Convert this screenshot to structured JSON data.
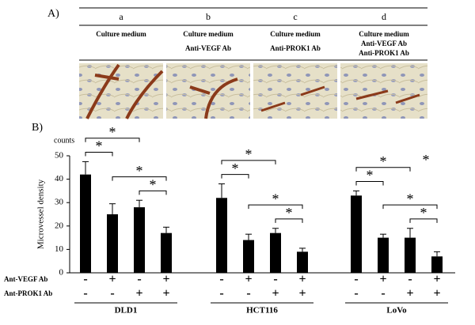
{
  "panel_a": {
    "label": "A)",
    "columns": [
      {
        "letter": "a",
        "lines": [
          "Culture medium"
        ]
      },
      {
        "letter": "b",
        "lines": [
          "Culture medium",
          "Anti-VEGF Ab"
        ]
      },
      {
        "letter": "c",
        "lines": [
          "Culture medium",
          "Anti-PROK1 Ab"
        ]
      },
      {
        "letter": "d",
        "lines": [
          "Culture medium",
          "Anti-VEGF Ab",
          "Anti-PROK1 Ab"
        ]
      }
    ]
  },
  "chart_data": {
    "type": "bar",
    "panel_label": "B)",
    "y_label": "Microvessel density",
    "y_unit": "counts",
    "color": "#000000",
    "ylim": [
      0,
      50
    ],
    "yticks": [
      0,
      10,
      20,
      30,
      40,
      50
    ],
    "categories": [
      null,
      null,
      null,
      null,
      null,
      null,
      null,
      null,
      null,
      null,
      null,
      null
    ],
    "values": [
      42,
      25,
      28,
      17,
      32,
      14,
      17,
      9,
      33,
      15,
      15,
      7
    ],
    "errors": [
      5.5,
      4.5,
      3,
      2.5,
      6,
      2.5,
      2,
      1.5,
      2,
      1.5,
      4,
      2
    ],
    "groups": [
      {
        "name": "DLD1",
        "from": 0,
        "to": 3
      },
      {
        "name": "HCT116",
        "from": 4,
        "to": 7
      },
      {
        "name": "LoVo",
        "from": 8,
        "to": 11
      }
    ],
    "conditions": [
      {
        "name": "Ant-VEGF Ab",
        "signs": [
          "-",
          "+",
          "-",
          "+",
          "-",
          "+",
          "-",
          "+",
          "-",
          "+",
          "-",
          "+"
        ]
      },
      {
        "name": "Ant-PROK1 Ab",
        "signs": [
          "-",
          "-",
          "+",
          "+",
          "-",
          "-",
          "+",
          "+",
          "-",
          "-",
          "+",
          "+"
        ]
      }
    ],
    "significance": [
      {
        "from": 0,
        "to": 1,
        "label": "*"
      },
      {
        "from": 0,
        "to": 2,
        "label": "*"
      },
      {
        "from": 1,
        "to": 3,
        "label": "*"
      },
      {
        "from": 2,
        "to": 3,
        "label": "*"
      },
      {
        "from": 4,
        "to": 5,
        "label": "*"
      },
      {
        "from": 4,
        "to": 6,
        "label": "*"
      },
      {
        "from": 5,
        "to": 7,
        "label": "*"
      },
      {
        "from": 6,
        "to": 7,
        "label": "*"
      },
      {
        "from": 8,
        "to": 9,
        "label": "*"
      },
      {
        "from": 8,
        "to": 10,
        "label": "*",
        "note": "*"
      },
      {
        "from": 9,
        "to": 11,
        "label": "*"
      },
      {
        "from": 10,
        "to": 11,
        "label": "*"
      }
    ]
  }
}
